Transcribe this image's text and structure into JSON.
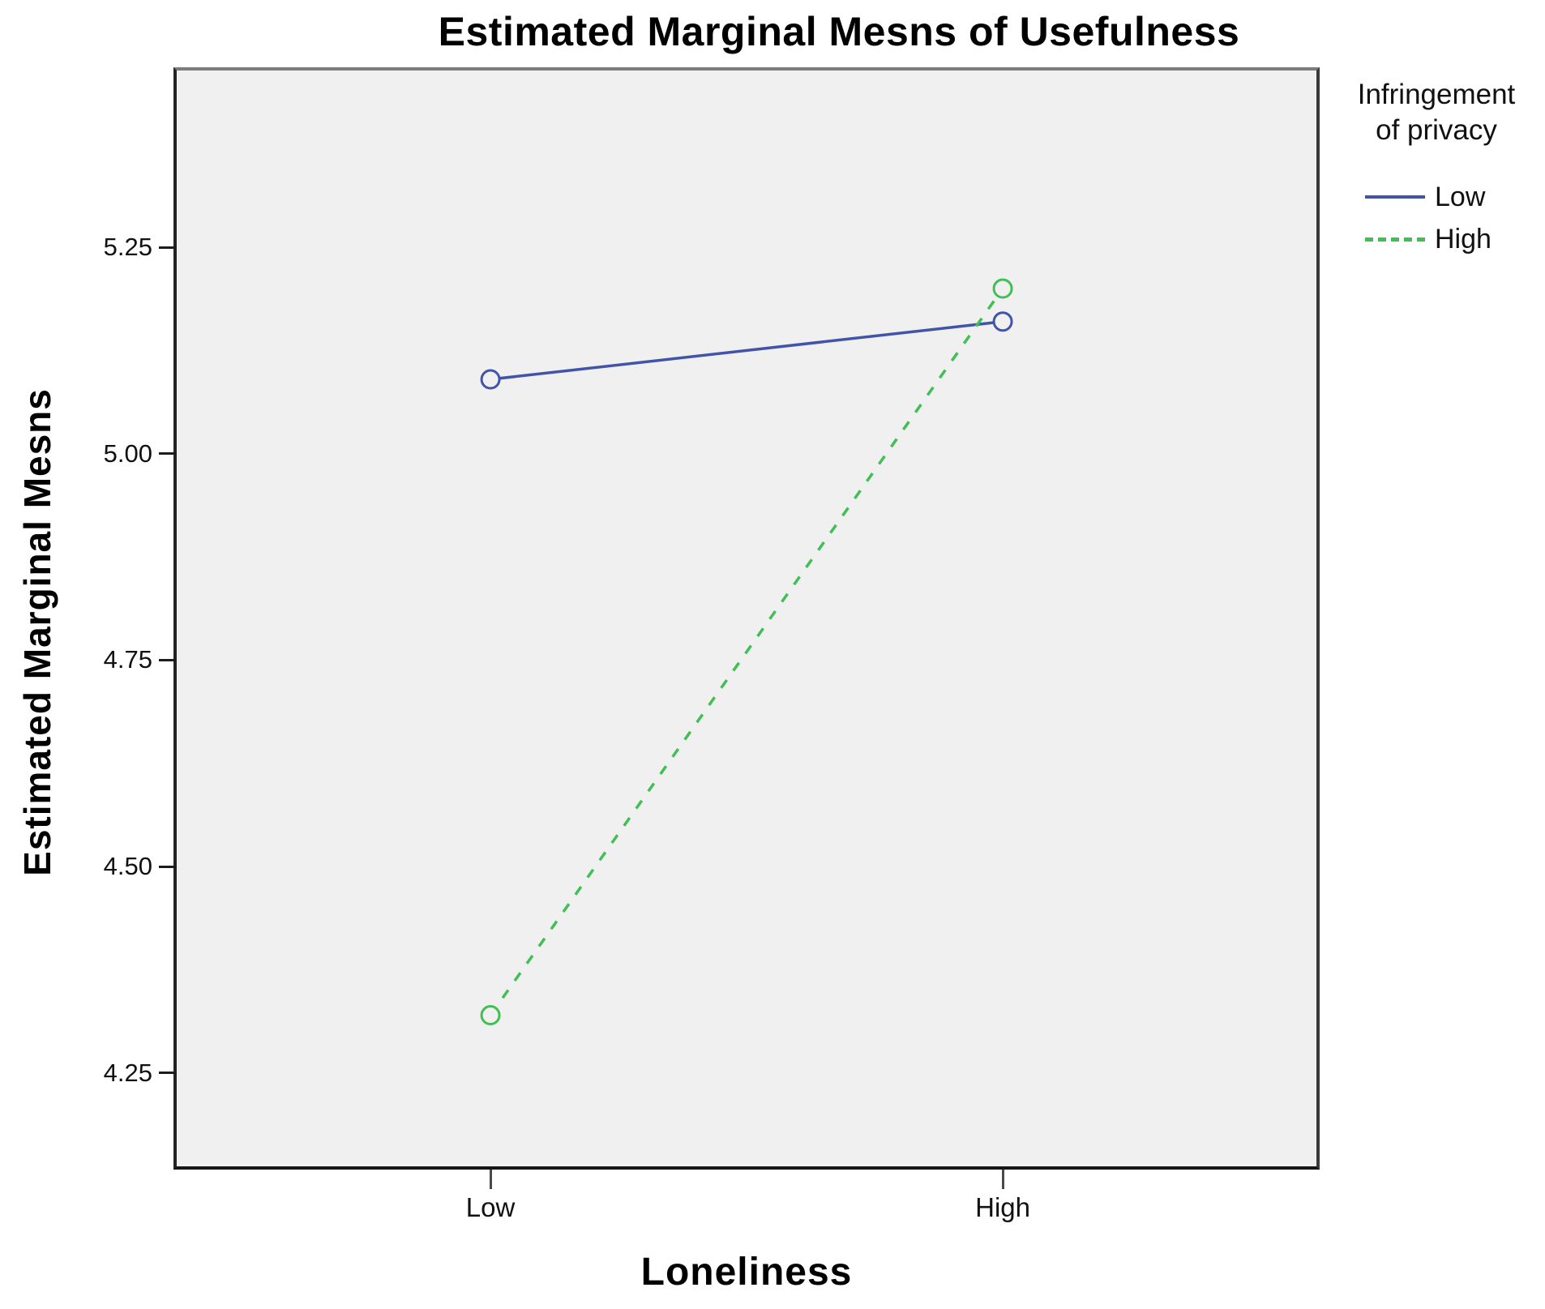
{
  "chart_data": {
    "type": "line",
    "title": "Estimated Marginal Mesns of Usefulness",
    "xlabel": "Loneliness",
    "ylabel": "Estimated Marginal Mesns",
    "categories": [
      "Low",
      "High"
    ],
    "series": [
      {
        "name": "Low",
        "values": [
          5.09,
          5.16
        ],
        "color": "#4254a8",
        "style": "solid"
      },
      {
        "name": "High",
        "values": [
          4.32,
          5.2
        ],
        "color": "#41bf55",
        "style": "dashed"
      }
    ],
    "ylim": [
      4.137,
      5.464
    ],
    "yticks": [
      4.25,
      4.5,
      4.75,
      5.0,
      5.25
    ],
    "ytick_labels": [
      "4.25",
      "4.50",
      "4.75",
      "5.00",
      "5.25"
    ],
    "grid": false,
    "legend_position": "right",
    "plot_background": "#f0f0f0",
    "marker": "open-circle"
  },
  "legend": {
    "title_lines": [
      "Infringement",
      "of privacy"
    ],
    "items": [
      {
        "label": "Low"
      },
      {
        "label": "High"
      }
    ]
  }
}
